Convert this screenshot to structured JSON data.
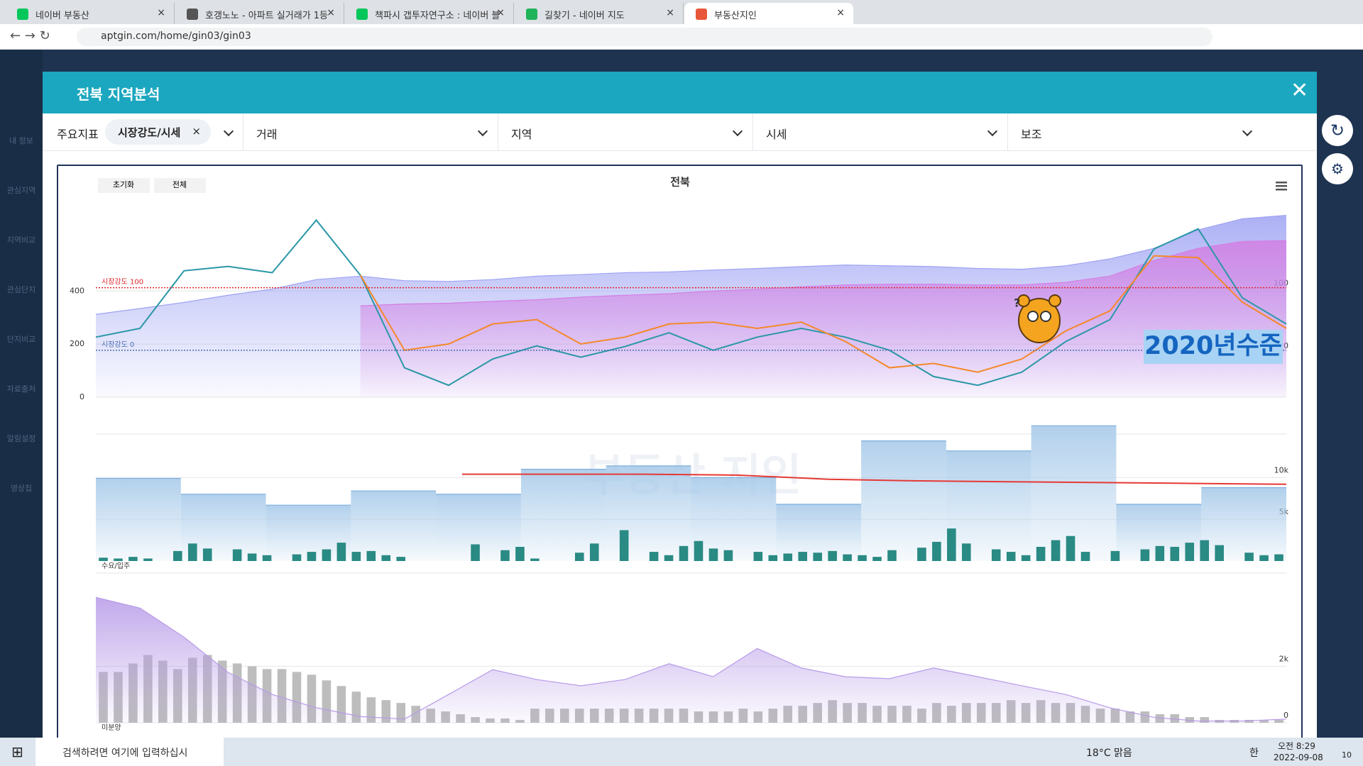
{
  "browser": {
    "tabs": [
      "네이버 부동산",
      "호갱노노 - 아파트 실거래가 1등",
      "책파시 갭투자연구소 : 네이버 블",
      "길찾기 - 네이버 지도",
      "부동산지인"
    ],
    "url": "aptgin.com/home/gin03/gin03"
  },
  "background": {
    "sidebar": [
      "내 정보",
      "관심지역",
      "지역비교",
      "관심단지",
      "단지비교",
      "자료출처",
      "알림설정",
      "영상칩"
    ]
  },
  "modal": {
    "title": "전북 지역분석",
    "filters": {
      "label": "주요지표",
      "chip": "시장강도/시세",
      "dropdowns": [
        "거래",
        "지역",
        "시세",
        "보조"
      ]
    },
    "chart_title": "전북",
    "buttons": [
      "초기화",
      "전체"
    ],
    "annotation": "2020년수준",
    "watermark": "부동산 지인"
  },
  "chart_data": [
    {
      "type": "combo",
      "ylim": [
        0,
        700
      ],
      "yticks": [
        0,
        200,
        400
      ],
      "y2lim": [
        -75,
        222
      ],
      "y2ticks": [
        0,
        100
      ],
      "reference_lines": [
        {
          "label": "시장강도 100",
          "value": 100,
          "color": "#e0242a",
          "axis": "y2"
        },
        {
          "label": "시장강도 0",
          "value": 0,
          "color": "#4a6fb0",
          "axis": "y2"
        }
      ],
      "series": [
        {
          "kind": "area",
          "color": "#9ea3f3",
          "values": [
            312,
            334,
            357,
            384,
            407,
            443,
            456,
            439,
            436,
            443,
            456,
            462,
            469,
            472,
            479,
            485,
            492,
            498,
            495,
            492,
            485,
            482,
            495,
            521,
            561,
            630,
            672,
            685
          ]
        },
        {
          "kind": "area",
          "color": "#d37fe3",
          "values": [
            null,
            null,
            null,
            null,
            null,
            null,
            344,
            351,
            354,
            361,
            367,
            377,
            384,
            390,
            400,
            407,
            416,
            423,
            426,
            426,
            423,
            423,
            433,
            456,
            515,
            561,
            587,
            590
          ]
        },
        {
          "kind": "line",
          "color": "#2a97a6",
          "axis": "y2",
          "values": [
            21,
            35,
            127,
            134,
            124,
            208,
            120,
            -28,
            -56,
            -14,
            7,
            -11,
            6,
            28,
            0,
            21,
            35,
            21,
            0,
            -42,
            -56,
            -35,
            14,
            49,
            162,
            194,
            84,
            42
          ]
        },
        {
          "kind": "line",
          "color": "#f5882a",
          "axis": "y2",
          "values": [
            null,
            null,
            null,
            null,
            null,
            null,
            120,
            0,
            10,
            42,
            49,
            10,
            21,
            42,
            45,
            35,
            45,
            14,
            -28,
            -21,
            -35,
            -14,
            31,
            63,
            151,
            148,
            77,
            35
          ]
        }
      ]
    },
    {
      "type": "combo",
      "label": "수요/입주",
      "ylim": [
        0,
        17000
      ],
      "yticks": [
        {
          "value": 5000,
          "label": "5k"
        },
        {
          "value": 10000,
          "label": "10k"
        }
      ],
      "series": [
        {
          "kind": "step",
          "color": "#a9cbea",
          "values": [
            9900,
            8000,
            6700,
            8400,
            8000,
            11000,
            11400,
            10000,
            6800,
            14400,
            13200,
            16200,
            6800,
            8800
          ]
        },
        {
          "kind": "line",
          "color": "#e53935",
          "values": [
            null,
            null,
            null,
            null,
            10400,
            10400,
            10400,
            10300,
            9800,
            9600,
            9500,
            9400,
            9300,
            9200
          ]
        },
        {
          "kind": "bar",
          "color": "#2a8a84",
          "values": [
            400,
            300,
            500,
            300,
            0,
            1200,
            2100,
            1500,
            0,
            1400,
            900,
            700,
            0,
            800,
            1100,
            1400,
            2200,
            1100,
            1200,
            700,
            500,
            0,
            0,
            0,
            0,
            2000,
            0,
            1300,
            1700,
            300,
            0,
            0,
            1000,
            2100,
            0,
            3700,
            0,
            1100,
            700,
            1800,
            2400,
            1500,
            1300,
            0,
            1100,
            700,
            900,
            1100,
            1000,
            1200,
            800,
            700,
            500,
            1300,
            0,
            1600,
            2300,
            3900,
            2100,
            0,
            1400,
            1100,
            700,
            1700,
            2500,
            3000,
            1100,
            0,
            1200,
            0,
            1400,
            1800,
            1700,
            2200,
            2500,
            1900,
            0,
            1000,
            700,
            800
          ]
        }
      ]
    },
    {
      "type": "combo",
      "label": "미분양",
      "ylim": [
        0,
        5300
      ],
      "yticks": [
        0,
        {
          "value": 2000,
          "label": "2k"
        }
      ],
      "series": [
        {
          "kind": "bar",
          "color": "#bdbdbd",
          "values": [
            1800,
            1800,
            2100,
            2400,
            2200,
            1900,
            2300,
            2400,
            2200,
            2100,
            2000,
            1900,
            1900,
            1800,
            1700,
            1500,
            1300,
            1100,
            900,
            800,
            700,
            600,
            500,
            400,
            300,
            200,
            150,
            150,
            100,
            500,
            500,
            500,
            500,
            500,
            500,
            500,
            500,
            500,
            500,
            500,
            400,
            400,
            400,
            500,
            400,
            500,
            600,
            600,
            700,
            800,
            700,
            700,
            600,
            600,
            600,
            500,
            700,
            600,
            700,
            700,
            700,
            800,
            700,
            800,
            700,
            700,
            600,
            500,
            500,
            400,
            400,
            300,
            300,
            200,
            200,
            100,
            100,
            100,
            100,
            100
          ]
        },
        {
          "kind": "area",
          "color": "#b79ae8",
          "values": [
            4440,
            4060,
            3030,
            1780,
            1000,
            530,
            220,
            130,
            1000,
            1880,
            1530,
            1310,
            1530,
            2090,
            1630,
            2630,
            1940,
            1630,
            1560,
            1940,
            1630,
            1310,
            1000,
            530,
            190,
            60,
            60,
            130
          ]
        }
      ]
    }
  ],
  "taskbar": {
    "search": "검색하려면 여기에 입력하십시",
    "weather": "18°C 맑음",
    "lang": "한",
    "time": "오전 8:29",
    "date": "2022-09-08",
    "badge": "10"
  }
}
